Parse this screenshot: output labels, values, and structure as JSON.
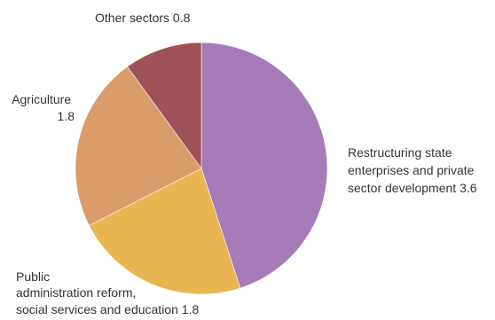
{
  "chart_data": {
    "type": "pie",
    "title": "",
    "start_angle_deg": 0,
    "direction": "clockwise",
    "slices": [
      {
        "label": [
          "Restructuring state",
          "enterprises and private",
          "sector development 3.6"
        ],
        "value": 3.6,
        "color": "#a57bb8"
      },
      {
        "label": [
          "Public",
          "administration reform,",
          "social services and education 1.8"
        ],
        "value": 1.8,
        "color": "#e9b651"
      },
      {
        "label": [
          "Agriculture",
          "1.8"
        ],
        "value": 1.8,
        "color": "#d99c6a"
      },
      {
        "label": [
          "Other sectors 0.8"
        ],
        "value": 0.8,
        "color": "#9e5159"
      }
    ]
  }
}
